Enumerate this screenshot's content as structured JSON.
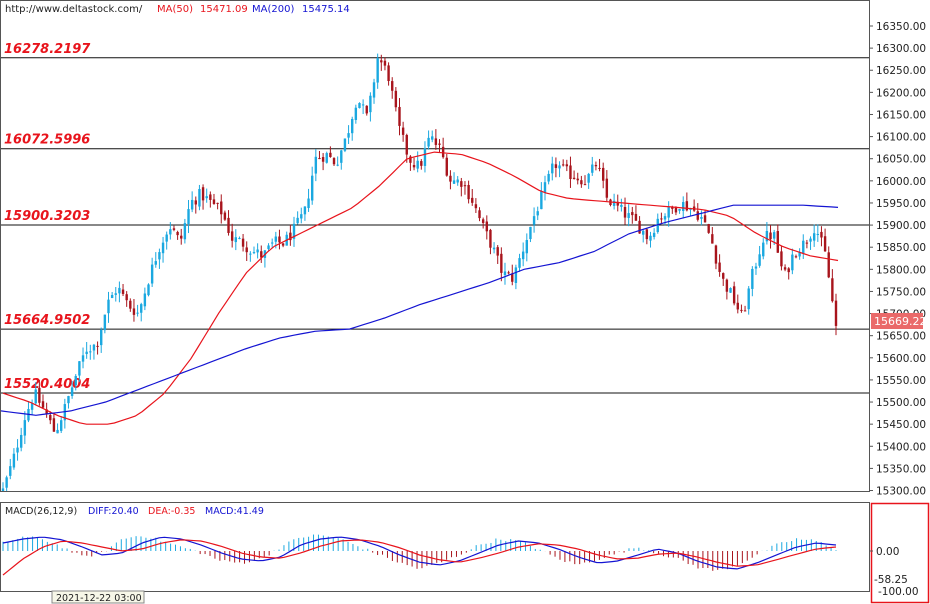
{
  "header": {
    "site": "http://www.deltastock.com/",
    "ma50_label": "MA(50)",
    "ma50_value": "15471.09",
    "ma200_label": "MA(200)",
    "ma200_value": "15475.14",
    "ma50_color": "#e8141c",
    "ma200_color": "#1414d2"
  },
  "macd_header": {
    "title": "MACD(26,12,9)",
    "diff": "DIFF:20.40",
    "dea": "DEA:-0.35",
    "macd": "MACD:41.49"
  },
  "footer": {
    "date": "2021-12-22 03:00"
  },
  "chart_data": {
    "type": "candlestick",
    "price_axis": {
      "ticks": [
        15300,
        15350,
        15400,
        15450,
        15500,
        15550,
        15600,
        15650,
        15700,
        15750,
        15800,
        15850,
        15900,
        15950,
        16000,
        16050,
        16100,
        16150,
        16200,
        16250,
        16300,
        16350
      ],
      "tick_labels": [
        "15300.00",
        "15350.00",
        "15400.00",
        "15450.00",
        "15500.00",
        "15550.00",
        "15600.00",
        "15650.00",
        "15700.00",
        "15750.00",
        "15800.00",
        "15850.00",
        "15900.00",
        "15950.00",
        "16000.00",
        "16050.00",
        "16100.00",
        "16150.00",
        "16200.00",
        "16250.00",
        "16300.00",
        "16350.00"
      ],
      "range": [
        15241,
        16381
      ]
    },
    "current_price": "15669.22",
    "levels": [
      {
        "value": 16278.2197,
        "label": "16278.2197"
      },
      {
        "value": 16072.5996,
        "label": "16072.5996"
      },
      {
        "value": 15900.3203,
        "label": "15900.3203"
      },
      {
        "value": 15664.9502,
        "label": "15664.9502"
      },
      {
        "value": 15520.4004,
        "label": "15520.4004"
      }
    ],
    "price_path": [
      15300,
      15370,
      15460,
      15520,
      15480,
      15430,
      15490,
      15560,
      15620,
      15630,
      15720,
      15760,
      15720,
      15700,
      15780,
      15850,
      15900,
      15860,
      15950,
      15970,
      15950,
      15930,
      15870,
      15860,
      15840,
      15830,
      15860,
      15860,
      15890,
      15930,
      16050,
      16060,
      16040,
      16100,
      16190,
      16140,
      16280,
      16240,
      16120,
      16050,
      16030,
      16100,
      16070,
      16000,
      16000,
      15960,
      15900,
      15850,
      15790,
      15780,
      15850,
      15920,
      15980,
      16040,
      16020,
      16010,
      16000,
      16040,
      15960,
      15940,
      15920,
      15900,
      15870,
      15920,
      15930,
      15950,
      15940,
      15920,
      15870,
      15780,
      15740,
      15690,
      15790,
      15870,
      15880,
      15780,
      15840,
      15860,
      15900,
      15830,
      15670
    ],
    "ma50_path": [
      15520,
      15500,
      15470,
      15450,
      15450,
      15470,
      15520,
      15600,
      15700,
      15790,
      15850,
      15880,
      15910,
      15940,
      15990,
      16050,
      16065,
      16060,
      16040,
      16010,
      15975,
      15960,
      15955,
      15950,
      15945,
      15940,
      15935,
      15920,
      15880,
      15850,
      15830,
      15820
    ],
    "ma200_path": [
      15480,
      15470,
      15480,
      15500,
      15530,
      15560,
      15590,
      15620,
      15645,
      15660,
      15665,
      15690,
      15720,
      15745,
      15770,
      15800,
      15815,
      15840,
      15880,
      15905,
      15925,
      15945,
      15945,
      15945,
      15940
    ],
    "macd_axis": {
      "tick_labels": [
        "0.00",
        "-100.00"
      ],
      "current": "-58.25"
    },
    "macd_hist": [
      20,
      35,
      30,
      10,
      -15,
      -5,
      30,
      40,
      25,
      10,
      -5,
      -25,
      -30,
      -20,
      10,
      35,
      40,
      30,
      10,
      -10,
      -30,
      -45,
      -30,
      -10,
      15,
      30,
      25,
      5,
      -20,
      -35,
      -20,
      -5,
      10,
      -5,
      -20,
      -40,
      -50,
      -35,
      -10,
      15,
      30,
      25,
      5
    ],
    "macd_diff": [
      20,
      30,
      35,
      28,
      10,
      -10,
      -5,
      20,
      35,
      30,
      15,
      -5,
      -20,
      -25,
      -15,
      15,
      30,
      35,
      28,
      12,
      -10,
      -28,
      -35,
      -25,
      -5,
      15,
      25,
      20,
      5,
      -15,
      -30,
      -25,
      -10,
      5,
      -5,
      -25,
      -40,
      -45,
      -30,
      -10,
      10,
      20,
      15
    ],
    "macd_dea": [
      -60,
      -20,
      10,
      25,
      20,
      10,
      0,
      5,
      20,
      28,
      25,
      12,
      -5,
      -15,
      -18,
      -5,
      12,
      25,
      28,
      22,
      8,
      -10,
      -22,
      -28,
      -18,
      -5,
      10,
      18,
      15,
      5,
      -10,
      -20,
      -18,
      -8,
      -5,
      -15,
      -28,
      -38,
      -35,
      -22,
      -8,
      5,
      10
    ]
  }
}
